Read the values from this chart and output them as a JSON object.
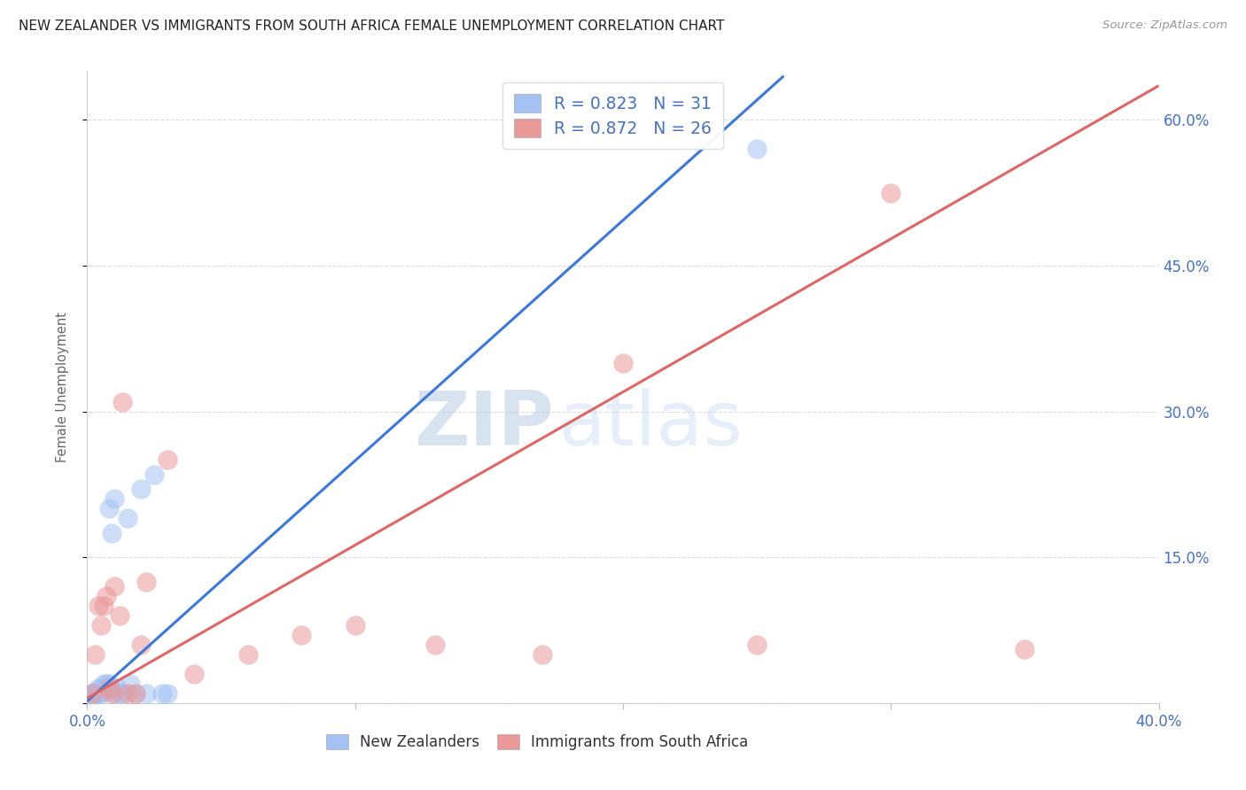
{
  "title": "NEW ZEALANDER VS IMMIGRANTS FROM SOUTH AFRICA FEMALE UNEMPLOYMENT CORRELATION CHART",
  "source": "Source: ZipAtlas.com",
  "ylabel": "Female Unemployment",
  "watermark_zip": "ZIP",
  "watermark_atlas": "atlas",
  "blue_R": 0.823,
  "blue_N": 31,
  "pink_R": 0.872,
  "pink_N": 26,
  "xmin": 0.0,
  "xmax": 0.4,
  "ymin": 0.0,
  "ymax": 0.65,
  "yticks": [
    0.0,
    0.15,
    0.3,
    0.45,
    0.6
  ],
  "ytick_labels": [
    "",
    "15.0%",
    "30.0%",
    "45.0%",
    "60.0%"
  ],
  "xticks": [
    0.0,
    0.1,
    0.2,
    0.3,
    0.4
  ],
  "xtick_labels": [
    "0.0%",
    "",
    "",
    "",
    "40.0%"
  ],
  "blue_scatter_color": "#a4c2f4",
  "pink_scatter_color": "#ea9999",
  "blue_line_color": "#3c78d8",
  "pink_line_color": "#e06666",
  "legend1_label": "New Zealanders",
  "legend2_label": "Immigrants from South Africa",
  "blue_x": [
    0.001,
    0.002,
    0.002,
    0.003,
    0.003,
    0.004,
    0.004,
    0.005,
    0.005,
    0.006,
    0.006,
    0.007,
    0.007,
    0.008,
    0.008,
    0.009,
    0.009,
    0.01,
    0.01,
    0.011,
    0.012,
    0.013,
    0.015,
    0.016,
    0.018,
    0.02,
    0.022,
    0.025,
    0.028,
    0.03,
    0.25
  ],
  "blue_y": [
    0.005,
    0.005,
    0.01,
    0.01,
    0.012,
    0.01,
    0.015,
    0.01,
    0.015,
    0.012,
    0.02,
    0.015,
    0.02,
    0.2,
    0.02,
    0.175,
    0.015,
    0.01,
    0.21,
    0.015,
    0.01,
    0.01,
    0.19,
    0.02,
    0.01,
    0.22,
    0.01,
    0.235,
    0.01,
    0.01,
    0.57
  ],
  "pink_x": [
    0.002,
    0.003,
    0.004,
    0.005,
    0.006,
    0.007,
    0.008,
    0.009,
    0.01,
    0.012,
    0.013,
    0.015,
    0.018,
    0.02,
    0.022,
    0.03,
    0.04,
    0.06,
    0.08,
    0.1,
    0.13,
    0.17,
    0.2,
    0.25,
    0.3,
    0.35
  ],
  "pink_y": [
    0.01,
    0.05,
    0.1,
    0.08,
    0.1,
    0.11,
    0.015,
    0.01,
    0.12,
    0.09,
    0.31,
    0.01,
    0.01,
    0.06,
    0.125,
    0.25,
    0.03,
    0.05,
    0.07,
    0.08,
    0.06,
    0.05,
    0.35,
    0.06,
    0.525,
    0.055
  ],
  "blue_trend_x": [
    0.0,
    0.26
  ],
  "blue_trend_y": [
    0.002,
    0.645
  ],
  "pink_trend_x": [
    0.0,
    0.4
  ],
  "pink_trend_y": [
    0.005,
    0.635
  ],
  "title_fontsize": 11,
  "axis_color": "#4472c4",
  "background_color": "#ffffff",
  "grid_color": "#dddddd"
}
